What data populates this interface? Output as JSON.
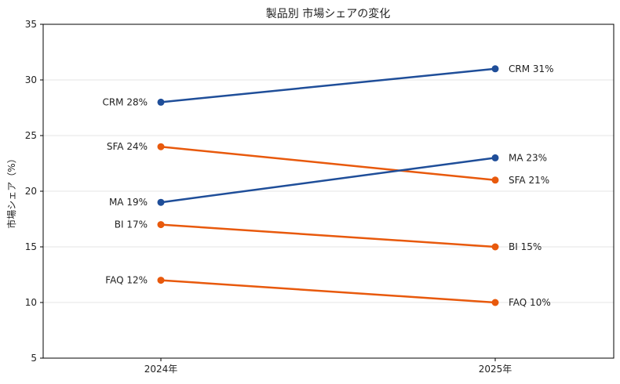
{
  "chart_data": {
    "type": "line",
    "title": "製品別 市場シェアの変化",
    "xlabel": "",
    "ylabel": "市場シェア（%）",
    "categories": [
      "2024年",
      "2025年"
    ],
    "ylim": [
      5,
      35
    ],
    "yticks": [
      5,
      10,
      15,
      20,
      25,
      30,
      35
    ],
    "grid": "horizontal",
    "series": [
      {
        "name": "CRM",
        "values": [
          28,
          31
        ],
        "color": "#1f4e99",
        "labels": [
          "CRM 28%",
          "CRM 31%"
        ]
      },
      {
        "name": "SFA",
        "values": [
          24,
          21
        ],
        "color": "#e8590c",
        "labels": [
          "SFA 24%",
          "SFA 21%"
        ]
      },
      {
        "name": "MA",
        "values": [
          19,
          23
        ],
        "color": "#1f4e99",
        "labels": [
          "MA 19%",
          "MA 23%"
        ]
      },
      {
        "name": "BI",
        "values": [
          17,
          15
        ],
        "color": "#e8590c",
        "labels": [
          "BI 17%",
          "BI 15%"
        ]
      },
      {
        "name": "FAQ",
        "values": [
          12,
          10
        ],
        "color": "#e8590c",
        "labels": [
          "FAQ 12%",
          "FAQ 10%"
        ]
      }
    ]
  }
}
